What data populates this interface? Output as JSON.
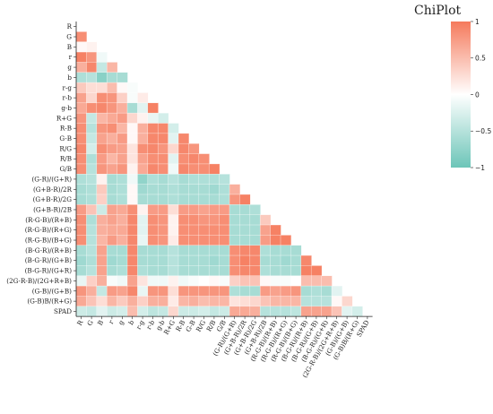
{
  "chart_data": {
    "type": "heatmap",
    "title": "ChiPlot",
    "variables": [
      "R",
      "G",
      "B",
      "r",
      "g",
      "b",
      "r-g",
      "r-b",
      "g-b",
      "R+G",
      "R-B",
      "G-B",
      "R/G",
      "R/B",
      "G/B",
      "(G-R)/(G+R)",
      "(G+B-R)/2R",
      "(G+B-R)/2G",
      "(G+B-R)/2B",
      "(R-G-B)/(R+B)",
      "(R-G-B)/(R+G)",
      "(R-G-B)/(B+G)",
      "(B-G-R)/(R+B)",
      "(B-G-R)/(G+B)",
      "(B-G-R)/(G+R)",
      "(2G-R-B)/(2G+R+B)",
      "(G-B)/(G+B)",
      "(G-B)B/(R+G)",
      "SPAD"
    ],
    "colorbar": {
      "min": -1,
      "max": 1,
      "ticks": [
        1,
        0.5,
        0,
        -0.5,
        -1
      ],
      "tick_labels": [
        "1",
        "0.5",
        "0",
        "−0.5",
        "−1"
      ],
      "colors": {
        "high": "#f57a5c",
        "mid": "#ffffff",
        "low": "#6cc5b8"
      }
    },
    "lower_triangle": [
      [
        0.85
      ],
      [
        0.05,
        0.1
      ],
      [
        0.95,
        0.8,
        -0.1
      ],
      [
        0.6,
        0.9,
        -0.4,
        0.55
      ],
      [
        -0.55,
        -0.5,
        -0.8,
        -0.6,
        -0.6
      ],
      [
        0.4,
        0.25,
        0.25,
        0.5,
        0.05,
        -0.05
      ],
      [
        0.7,
        0.3,
        0.85,
        0.8,
        0.35,
        -0.05,
        0.15
      ],
      [
        0.65,
        0.85,
        0.9,
        0.8,
        0.6,
        -0.6,
        -0.2,
        0.95
      ],
      [
        0.8,
        -0.4,
        0.55,
        0.65,
        0.75,
        0.3,
        0.1,
        -0.15,
        -0.3
      ],
      [
        0.85,
        -0.5,
        0.8,
        0.85,
        0.55,
        0.05,
        0.6,
        0.9,
        0.9,
        -0.3
      ],
      [
        0.85,
        -0.4,
        0.7,
        0.6,
        0.75,
        0.05,
        0.6,
        0.9,
        0.9,
        -0.2,
        0.9
      ],
      [
        0.9,
        -0.3,
        0.85,
        0.75,
        0.7,
        0.2,
        0.85,
        0.9,
        0.8,
        0.3,
        0.9,
        0.8
      ],
      [
        0.85,
        -0.55,
        0.75,
        0.55,
        0.7,
        0.2,
        0.7,
        0.85,
        0.85,
        -0.2,
        0.85,
        0.9,
        0.85
      ],
      [
        0.85,
        -0.5,
        0.8,
        0.7,
        0.8,
        0.1,
        0.65,
        0.9,
        0.85,
        -0.1,
        0.9,
        0.85,
        0.85,
        0.95
      ],
      [
        -0.55,
        -0.5,
        0.1,
        -0.6,
        -0.55,
        -0.1,
        -0.75,
        -0.55,
        -0.6,
        -0.5,
        -0.6,
        -0.55,
        -0.55,
        -0.55,
        -0.5
      ],
      [
        -0.6,
        -0.55,
        0.4,
        -0.6,
        -0.55,
        0.05,
        -0.65,
        -0.6,
        -0.6,
        -0.55,
        -0.6,
        -0.6,
        -0.6,
        -0.65,
        -0.55,
        0.6
      ],
      [
        -0.6,
        -0.55,
        0.35,
        -0.6,
        -0.55,
        0.05,
        -0.6,
        -0.6,
        -0.6,
        -0.55,
        -0.6,
        -0.6,
        -0.6,
        -0.6,
        -0.55,
        0.8,
        0.95
      ],
      [
        0.75,
        0.45,
        -0.35,
        0.7,
        0.65,
        0.85,
        0.1,
        0.75,
        0.75,
        0.25,
        0.75,
        0.75,
        0.7,
        0.75,
        0.75,
        -0.6,
        -0.6,
        -0.55
      ],
      [
        0.85,
        -0.55,
        0.6,
        0.7,
        0.6,
        0.9,
        -0.2,
        0.85,
        0.8,
        0.1,
        0.85,
        0.85,
        0.8,
        0.8,
        0.85,
        -0.6,
        -0.6,
        -0.6,
        0.4
      ],
      [
        0.85,
        -0.5,
        0.6,
        0.65,
        0.65,
        0.9,
        -0.2,
        0.85,
        0.8,
        0.1,
        0.85,
        0.85,
        0.85,
        0.85,
        0.85,
        -0.6,
        -0.6,
        -0.6,
        0.7,
        0.95
      ],
      [
        0.85,
        -0.5,
        0.55,
        0.75,
        0.6,
        0.9,
        -0.15,
        0.85,
        0.8,
        0.15,
        0.85,
        0.85,
        0.85,
        0.85,
        0.85,
        -0.6,
        -0.6,
        -0.6,
        0.75,
        0.95,
        0.95
      ],
      [
        -0.6,
        -0.5,
        0.7,
        -0.6,
        -0.6,
        0.9,
        -0.6,
        -0.6,
        -0.6,
        -0.5,
        -0.6,
        -0.6,
        -0.6,
        -0.6,
        -0.6,
        0.85,
        0.9,
        0.9,
        -0.55,
        -0.6,
        -0.6,
        -0.6
      ],
      [
        -0.65,
        -0.55,
        0.7,
        -0.65,
        -0.6,
        0.9,
        -0.6,
        -0.6,
        -0.6,
        -0.5,
        -0.6,
        -0.6,
        -0.6,
        -0.65,
        -0.6,
        0.85,
        0.95,
        0.9,
        -0.6,
        -0.6,
        -0.65,
        -0.6,
        0.9
      ],
      [
        -0.6,
        -0.5,
        0.7,
        -0.6,
        -0.55,
        0.9,
        -0.55,
        -0.6,
        -0.6,
        -0.5,
        -0.6,
        -0.6,
        -0.6,
        -0.6,
        -0.6,
        0.85,
        0.9,
        0.9,
        -0.55,
        -0.6,
        -0.6,
        -0.6,
        0.95,
        0.95
      ],
      [
        -0.15,
        0.35,
        0.6,
        -0.05,
        -0.1,
        0.7,
        0.2,
        -0.1,
        -0.1,
        0.1,
        -0.1,
        -0.05,
        0.0,
        0.05,
        -0.05,
        0.35,
        0.45,
        0.45,
        0.05,
        -0.05,
        -0.05,
        0.0,
        0.5,
        0.5,
        0.5
      ],
      [
        0.8,
        0.6,
        -0.4,
        0.75,
        0.7,
        0.9,
        -0.15,
        0.8,
        0.8,
        0.25,
        0.8,
        0.8,
        0.8,
        0.8,
        0.8,
        -0.55,
        -0.6,
        -0.6,
        0.75,
        0.7,
        0.75,
        0.8,
        -0.6,
        -0.55,
        -0.6,
        -0.2
      ],
      [
        0.65,
        0.45,
        0.25,
        0.55,
        0.4,
        0.6,
        0.35,
        0.6,
        0.6,
        0.15,
        0.55,
        0.6,
        0.5,
        0.55,
        0.55,
        0.2,
        0.25,
        0.3,
        0.45,
        0.55,
        0.55,
        0.55,
        -0.5,
        -0.5,
        -0.5,
        0.05,
        0.3
      ],
      [
        -0.35,
        -0.4,
        -0.2,
        -0.35,
        -0.3,
        0.5,
        -0.3,
        -0.45,
        -0.4,
        0.3,
        -0.35,
        -0.35,
        -0.3,
        -0.4,
        -0.35,
        0.65,
        0.65,
        0.6,
        -0.5,
        -0.5,
        -0.5,
        -0.45,
        0.7,
        0.7,
        0.7,
        0.45,
        -0.2,
        -0.3
      ]
    ]
  }
}
